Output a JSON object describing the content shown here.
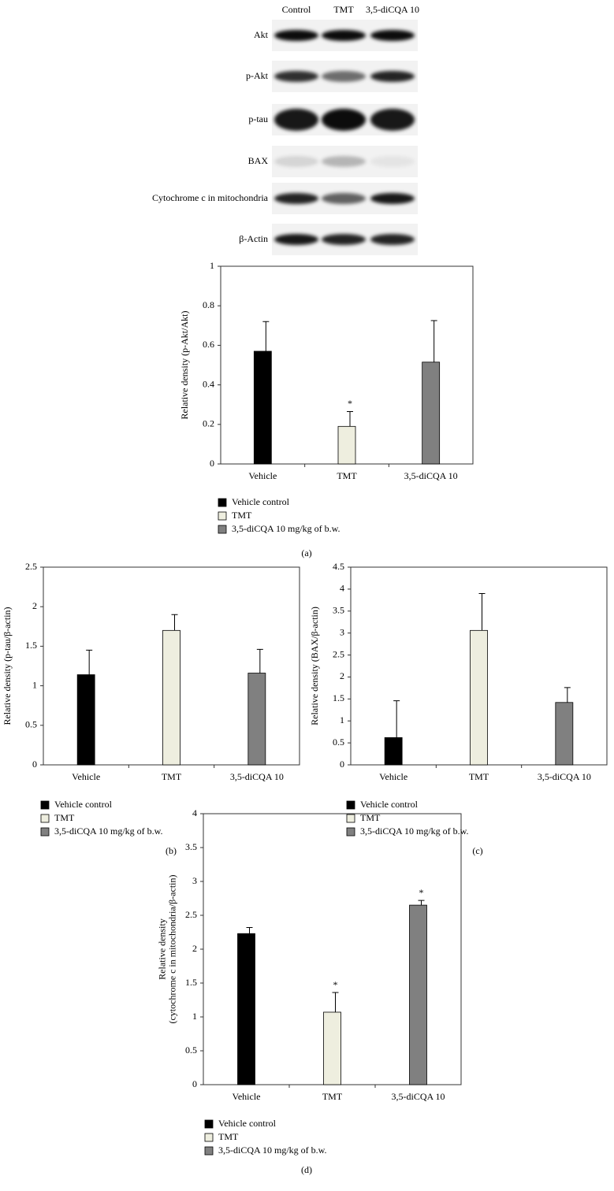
{
  "blot": {
    "columns": [
      "Control",
      "TMT",
      "3,5-diCQA 10"
    ],
    "rows": [
      "Akt",
      "p-Akt",
      "p-tau",
      "BAX",
      "Cytochrome c in mitochondria",
      "β-Actin"
    ]
  },
  "chart_data": [
    {
      "type": "bar",
      "panel": "(a)",
      "ylabel": [
        "Relative density (p-Akt/Akt)"
      ],
      "categories": [
        "Vehicle",
        "TMT",
        "3,5-diCQA 10"
      ],
      "values": [
        0.57,
        0.19,
        0.515
      ],
      "errors": [
        0.15,
        0.075,
        0.21
      ],
      "markers": [
        null,
        "*",
        null
      ],
      "colors": [
        "#000000",
        "#eeeedf",
        "#808080"
      ],
      "legend": [
        "Vehicle control",
        "TMT",
        "3,5-diCQA 10 mg/kg of b.w."
      ],
      "ylim": [
        0,
        1
      ],
      "yticks": [
        0,
        0.2,
        0.4,
        0.6,
        0.8,
        1
      ]
    },
    {
      "type": "bar",
      "panel": "(b)",
      "ylabel": [
        "Relative density (p-tau/β-actin)"
      ],
      "categories": [
        "Vehicle",
        "TMT",
        "3,5-diCQA 10"
      ],
      "values": [
        1.14,
        1.7,
        1.16
      ],
      "errors": [
        0.31,
        0.2,
        0.3
      ],
      "markers": [
        null,
        null,
        null
      ],
      "colors": [
        "#000000",
        "#eeeedf",
        "#808080"
      ],
      "legend": [
        "Vehicle control",
        "TMT",
        "3,5-diCQA 10 mg/kg of b.w."
      ],
      "ylim": [
        0,
        2.5
      ],
      "yticks": [
        0,
        0.5,
        1,
        1.5,
        2,
        2.5
      ]
    },
    {
      "type": "bar",
      "panel": "(c)",
      "ylabel": [
        "Relative density (BAX/β-actin)"
      ],
      "categories": [
        "Vehicle",
        "TMT",
        "3,5-diCQA 10"
      ],
      "values": [
        0.62,
        3.06,
        1.42
      ],
      "errors": [
        0.84,
        0.84,
        0.34
      ],
      "markers": [
        null,
        null,
        null
      ],
      "colors": [
        "#000000",
        "#eeeedf",
        "#808080"
      ],
      "legend": [
        "Vehicle control",
        "TMT",
        "3,5-diCQA 10 mg/kg of b.w."
      ],
      "ylim": [
        0,
        4.5
      ],
      "yticks": [
        0,
        0.5,
        1,
        1.5,
        2,
        2.5,
        3,
        3.5,
        4,
        4.5
      ]
    },
    {
      "type": "bar",
      "panel": "(d)",
      "ylabel": [
        "Relative density",
        "(cytochrome c in mitochondria/β-actin)"
      ],
      "categories": [
        "Vehicle",
        "TMT",
        "3,5-diCQA 10"
      ],
      "values": [
        2.23,
        1.07,
        2.65
      ],
      "errors": [
        0.09,
        0.29,
        0.07
      ],
      "markers": [
        null,
        "*",
        "*"
      ],
      "colors": [
        "#000000",
        "#eeeedf",
        "#808080"
      ],
      "legend": [
        "Vehicle control",
        "TMT",
        "3,5-diCQA 10 mg/kg of b.w."
      ],
      "ylim": [
        0,
        4
      ],
      "yticks": [
        0,
        0.5,
        1,
        1.5,
        2,
        2.5,
        3,
        3.5,
        4
      ]
    }
  ]
}
